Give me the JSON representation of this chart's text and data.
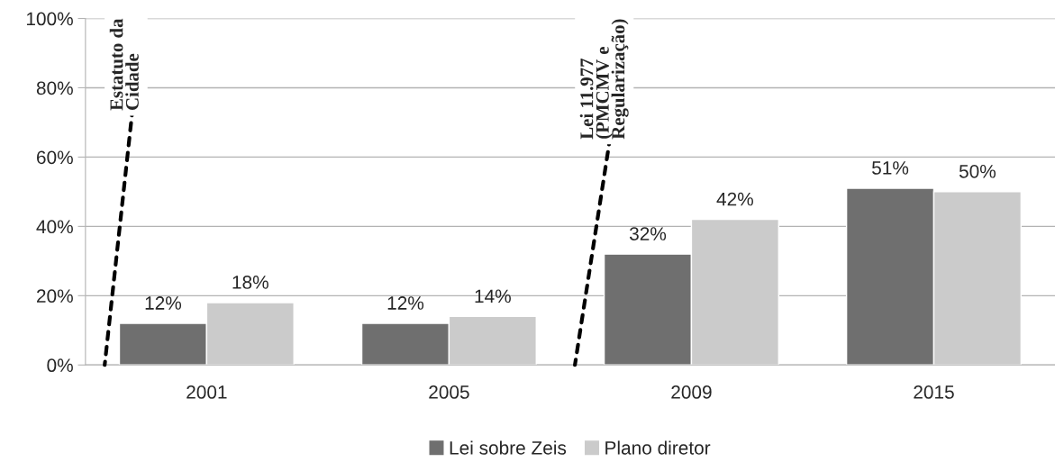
{
  "chart_data": {
    "type": "bar",
    "categories": [
      "2001",
      "2005",
      "2009",
      "2015"
    ],
    "series": [
      {
        "name": "Lei sobre Zeis",
        "color": "#6f6f6f",
        "values": [
          12,
          12,
          32,
          51
        ],
        "value_labels": [
          "12%",
          "12%",
          "32%",
          "51%"
        ]
      },
      {
        "name": "Plano diretor",
        "color": "#cbcbcb",
        "values": [
          18,
          14,
          42,
          50
        ],
        "value_labels": [
          "18%",
          "14%",
          "42%",
          "50%"
        ]
      }
    ],
    "ylim": [
      0,
      100
    ],
    "yticks": [
      {
        "value": 0,
        "label": "0%"
      },
      {
        "value": 20,
        "label": "20%"
      },
      {
        "value": 40,
        "label": "40%"
      },
      {
        "value": 60,
        "label": "60%"
      },
      {
        "value": 80,
        "label": "80%"
      },
      {
        "value": 100,
        "label": "100%"
      }
    ],
    "grid": "y",
    "legend": "bottom",
    "annotations": [
      "Estatuto da\nCidade",
      "Lei 11.977\n(PMCMV e\nRegularização)"
    ]
  }
}
